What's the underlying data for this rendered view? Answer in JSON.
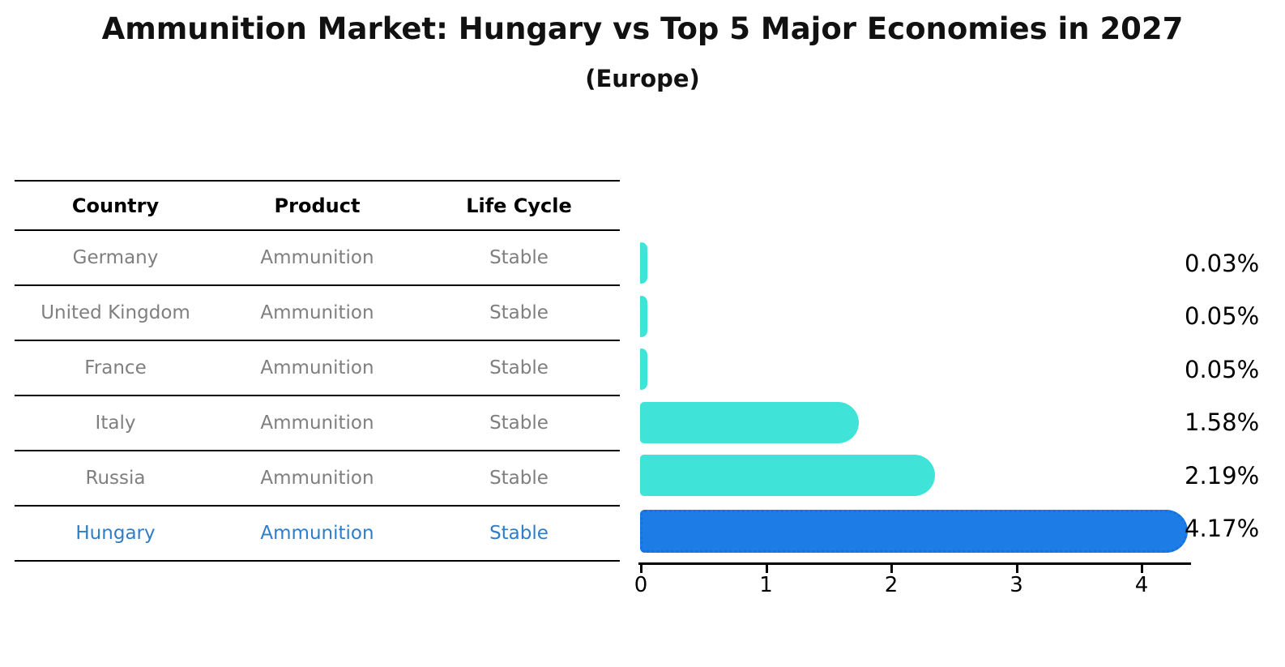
{
  "title": "Ammunition Market: Hungary vs Top 5 Major Economies in 2027",
  "subtitle": "(Europe)",
  "table": {
    "headers": [
      "Country",
      "Product",
      "Life Cycle"
    ],
    "rows": [
      {
        "country": "Germany",
        "product": "Ammunition",
        "life_cycle": "Stable",
        "highlighted": false
      },
      {
        "country": "United Kingdom",
        "product": "Ammunition",
        "life_cycle": "Stable",
        "highlighted": false
      },
      {
        "country": "France",
        "product": "Ammunition",
        "life_cycle": "Stable",
        "highlighted": false
      },
      {
        "country": "Italy",
        "product": "Ammunition",
        "life_cycle": "Stable",
        "highlighted": false
      },
      {
        "country": "Russia",
        "product": "Ammunition",
        "life_cycle": "Stable",
        "highlighted": false
      },
      {
        "country": "Hungary",
        "product": "Ammunition",
        "life_cycle": "Stable",
        "highlighted": true
      }
    ]
  },
  "chart_data": {
    "type": "bar",
    "orientation": "horizontal",
    "categories": [
      "Germany",
      "United Kingdom",
      "France",
      "Italy",
      "Russia",
      "Hungary"
    ],
    "values": [
      0.03,
      0.05,
      0.05,
      1.58,
      2.19,
      4.17
    ],
    "labels": [
      "0.03%",
      "0.05%",
      "0.05%",
      "1.58%",
      "2.19%",
      "4.17%"
    ],
    "x_ticks": [
      0,
      1,
      2,
      3,
      4
    ],
    "xlim": [
      0,
      4.4
    ],
    "grid": false,
    "legend": false,
    "highlight_category": "Hungary",
    "bar_color": "#40e3d8",
    "highlight_color": "#1e7ce6",
    "highlight_border_color": "#1670e0"
  },
  "colors": {
    "text_gray": "#7f7f7f",
    "highlight_text": "#2e7dcb",
    "axis": "#000000"
  }
}
